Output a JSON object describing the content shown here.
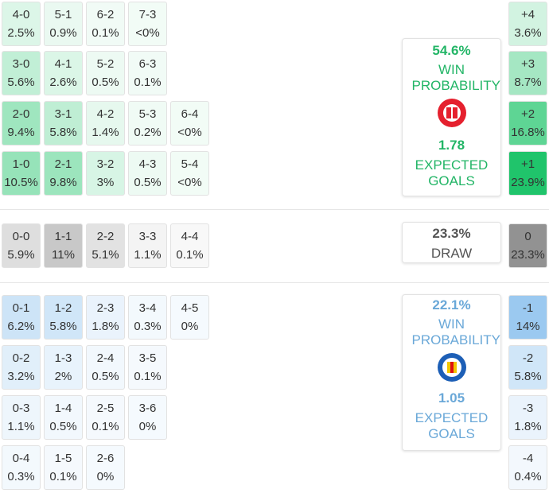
{
  "home": {
    "color": "#1fc46a",
    "text_color": "#22b566",
    "rows": [
      [
        {
          "score": "4-0",
          "prob": "2.5%"
        },
        {
          "score": "5-1",
          "prob": "0.9%"
        },
        {
          "score": "6-2",
          "prob": "0.1%"
        },
        {
          "score": "7-3",
          "prob": "<0%"
        }
      ],
      [
        {
          "score": "3-0",
          "prob": "5.6%"
        },
        {
          "score": "4-1",
          "prob": "2.6%"
        },
        {
          "score": "5-2",
          "prob": "0.5%"
        },
        {
          "score": "6-3",
          "prob": "0.1%"
        }
      ],
      [
        {
          "score": "2-0",
          "prob": "9.4%"
        },
        {
          "score": "3-1",
          "prob": "5.8%"
        },
        {
          "score": "4-2",
          "prob": "1.4%"
        },
        {
          "score": "5-3",
          "prob": "0.2%"
        },
        {
          "score": "6-4",
          "prob": "<0%"
        }
      ],
      [
        {
          "score": "1-0",
          "prob": "10.5%"
        },
        {
          "score": "2-1",
          "prob": "9.8%"
        },
        {
          "score": "3-2",
          "prob": "3%"
        },
        {
          "score": "4-3",
          "prob": "0.5%"
        },
        {
          "score": "5-4",
          "prob": "<0%"
        }
      ]
    ],
    "margins": [
      {
        "diff": "+4",
        "prob": "3.6%"
      },
      {
        "diff": "+3",
        "prob": "8.7%"
      },
      {
        "diff": "+2",
        "prob": "16.8%"
      },
      {
        "diff": "+1",
        "prob": "23.9%"
      }
    ],
    "summary": {
      "win_probability": "54.6%",
      "win_label": "WIN PROBABILITY",
      "expected_goals": "1.78",
      "xg_label": "EXPECTED GOALS"
    }
  },
  "draw": {
    "color": "#8f8f8f",
    "text_color": "#555555",
    "rows": [
      [
        {
          "score": "0-0",
          "prob": "5.9%"
        },
        {
          "score": "1-1",
          "prob": "11%"
        },
        {
          "score": "2-2",
          "prob": "5.1%"
        },
        {
          "score": "3-3",
          "prob": "1.1%"
        },
        {
          "score": "4-4",
          "prob": "0.1%"
        }
      ]
    ],
    "margins": [
      {
        "diff": "0",
        "prob": "23.3%"
      }
    ],
    "summary": {
      "probability": "23.3%",
      "label": "DRAW"
    }
  },
  "away": {
    "color": "#5aa6e6",
    "text_color": "#6aa8d8",
    "rows": [
      [
        {
          "score": "0-1",
          "prob": "6.2%"
        },
        {
          "score": "1-2",
          "prob": "5.8%"
        },
        {
          "score": "2-3",
          "prob": "1.8%"
        },
        {
          "score": "3-4",
          "prob": "0.3%"
        },
        {
          "score": "4-5",
          "prob": "0%"
        }
      ],
      [
        {
          "score": "0-2",
          "prob": "3.2%"
        },
        {
          "score": "1-3",
          "prob": "2%"
        },
        {
          "score": "2-4",
          "prob": "0.5%"
        },
        {
          "score": "3-5",
          "prob": "0.1%"
        }
      ],
      [
        {
          "score": "0-3",
          "prob": "1.1%"
        },
        {
          "score": "1-4",
          "prob": "0.5%"
        },
        {
          "score": "2-5",
          "prob": "0.1%"
        },
        {
          "score": "3-6",
          "prob": "0%"
        }
      ],
      [
        {
          "score": "0-4",
          "prob": "0.3%"
        },
        {
          "score": "1-5",
          "prob": "0.1%"
        },
        {
          "score": "2-6",
          "prob": "0%"
        }
      ]
    ],
    "margins": [
      {
        "diff": "-1",
        "prob": "14%"
      },
      {
        "diff": "-2",
        "prob": "5.8%"
      },
      {
        "diff": "-3",
        "prob": "1.8%"
      },
      {
        "diff": "-4",
        "prob": "0.4%"
      }
    ],
    "summary": {
      "win_probability": "22.1%",
      "win_label": "WIN PROBABILITY",
      "expected_goals": "1.05",
      "xg_label": "EXPECTED GOALS"
    }
  }
}
